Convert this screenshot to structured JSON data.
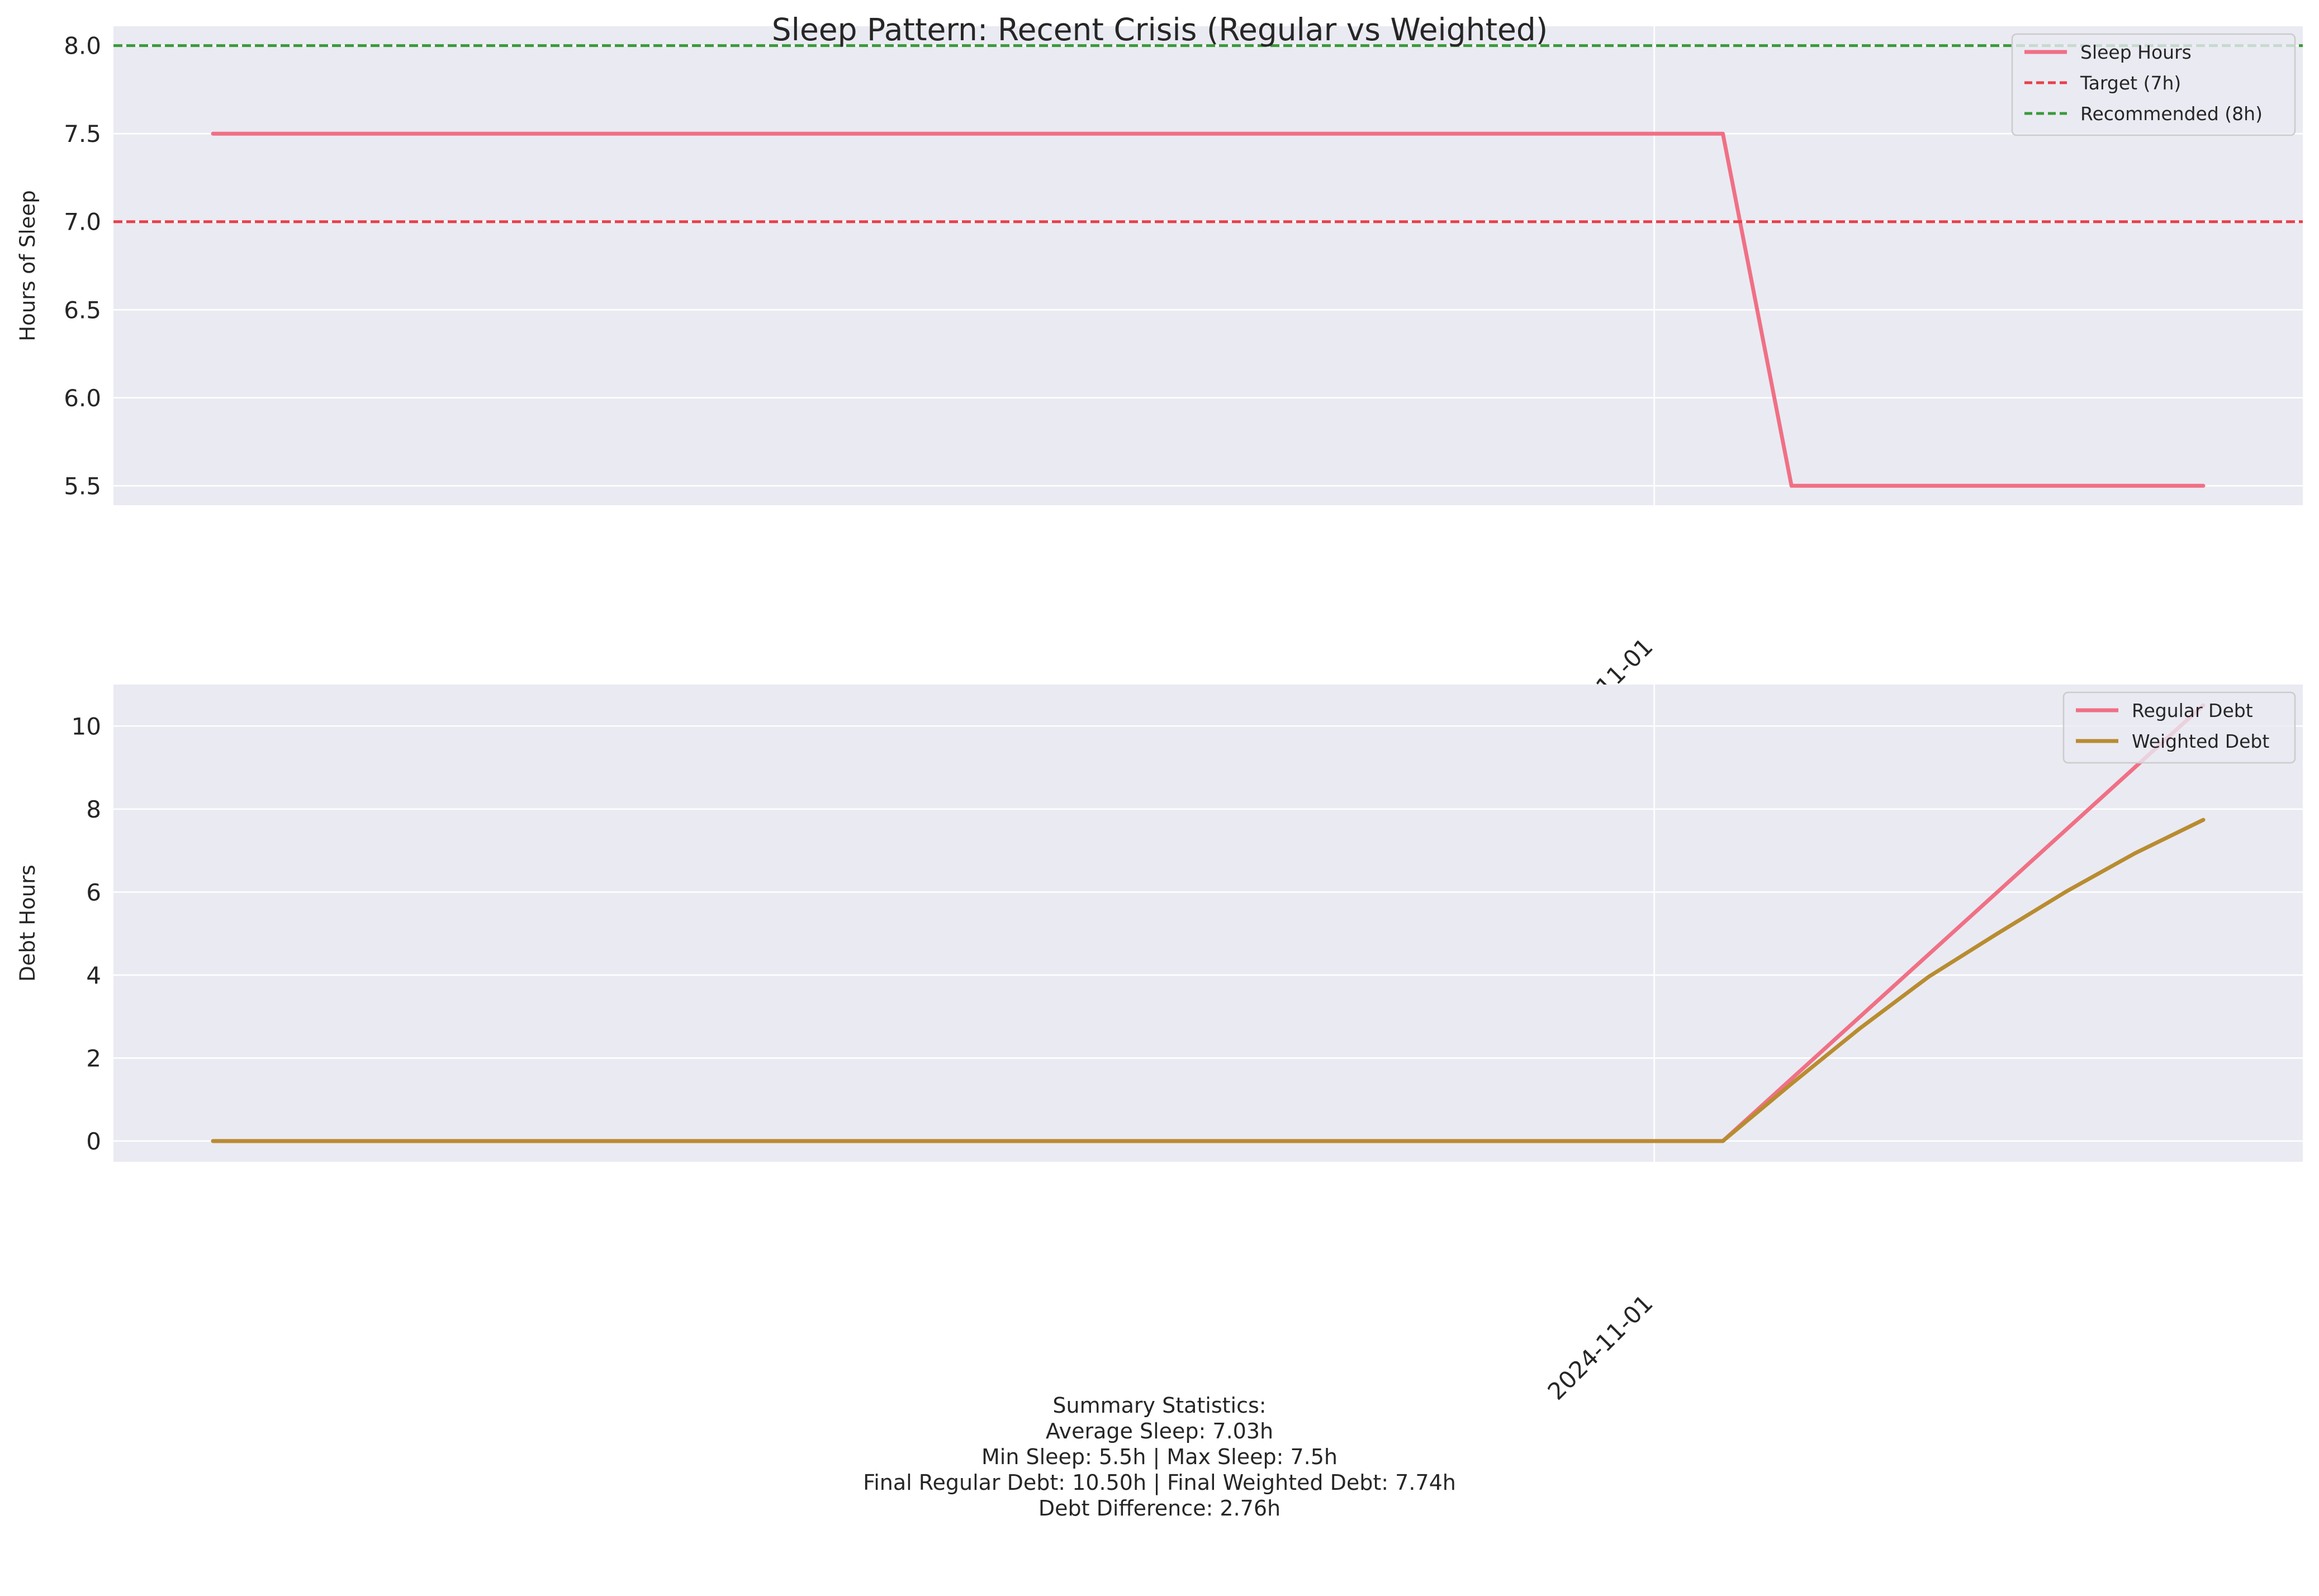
{
  "chart_data": [
    {
      "type": "line",
      "title": "Sleep Pattern: Recent Crisis (Regular vs Weighted)",
      "xlabel": "",
      "ylabel": "Hours of Sleep",
      "x_tick_labels": [
        "2024-11-01"
      ],
      "y_ticks": [
        "5.5",
        "6.0",
        "6.5",
        "7.0",
        "7.5",
        "8.0"
      ],
      "ylim": [
        5.39,
        8.11
      ],
      "x": [
        "2024-10-11",
        "2024-10-12",
        "2024-10-13",
        "2024-10-14",
        "2024-10-15",
        "2024-10-16",
        "2024-10-17",
        "2024-10-18",
        "2024-10-19",
        "2024-10-20",
        "2024-10-21",
        "2024-10-22",
        "2024-10-23",
        "2024-10-24",
        "2024-10-25",
        "2024-10-26",
        "2024-10-27",
        "2024-10-28",
        "2024-10-29",
        "2024-10-30",
        "2024-10-31",
        "2024-11-01",
        "2024-11-02",
        "2024-11-03",
        "2024-11-04",
        "2024-11-05",
        "2024-11-06",
        "2024-11-07",
        "2024-11-08",
        "2024-11-09"
      ],
      "series": [
        {
          "name": "Sleep Hours",
          "color": "#f07085",
          "style": "solid",
          "values": [
            7.5,
            7.5,
            7.5,
            7.5,
            7.5,
            7.5,
            7.5,
            7.5,
            7.5,
            7.5,
            7.5,
            7.5,
            7.5,
            7.5,
            7.5,
            7.5,
            7.5,
            7.5,
            7.5,
            7.5,
            7.5,
            7.5,
            7.5,
            5.5,
            5.5,
            5.5,
            5.5,
            5.5,
            5.5,
            5.5
          ]
        }
      ],
      "reference_lines": [
        {
          "name": "Target (7h)",
          "value": 7.0,
          "color": "#e8404a",
          "style": "dashed"
        },
        {
          "name": "Recommended (8h)",
          "value": 8.0,
          "color": "#3a9a3a",
          "style": "dashed"
        }
      ],
      "grid": true,
      "legend": "top-right"
    },
    {
      "type": "line",
      "xlabel": "",
      "ylabel": "Debt Hours",
      "x_tick_labels": [
        "2024-11-01"
      ],
      "y_ticks": [
        "0",
        "2",
        "4",
        "6",
        "8",
        "10"
      ],
      "ylim": [
        -0.5,
        11.0
      ],
      "x": [
        "2024-10-11",
        "2024-10-12",
        "2024-10-13",
        "2024-10-14",
        "2024-10-15",
        "2024-10-16",
        "2024-10-17",
        "2024-10-18",
        "2024-10-19",
        "2024-10-20",
        "2024-10-21",
        "2024-10-22",
        "2024-10-23",
        "2024-10-24",
        "2024-10-25",
        "2024-10-26",
        "2024-10-27",
        "2024-10-28",
        "2024-10-29",
        "2024-10-30",
        "2024-10-31",
        "2024-11-01",
        "2024-11-02",
        "2024-11-03",
        "2024-11-04",
        "2024-11-05",
        "2024-11-06",
        "2024-11-07",
        "2024-11-08",
        "2024-11-09"
      ],
      "series": [
        {
          "name": "Regular Debt",
          "color": "#f07085",
          "style": "solid",
          "values": [
            0,
            0,
            0,
            0,
            0,
            0,
            0,
            0,
            0,
            0,
            0,
            0,
            0,
            0,
            0,
            0,
            0,
            0,
            0,
            0,
            0,
            0,
            0,
            1.5,
            3.0,
            4.5,
            6.0,
            7.5,
            9.0,
            10.5
          ]
        },
        {
          "name": "Weighted Debt",
          "color": "#b88c30",
          "style": "solid",
          "values": [
            0,
            0,
            0,
            0,
            0,
            0,
            0,
            0,
            0,
            0,
            0,
            0,
            0,
            0,
            0,
            0,
            0,
            0,
            0,
            0,
            0,
            0,
            0,
            1.38,
            2.72,
            3.96,
            5.0,
            6.01,
            6.93,
            7.74
          ]
        }
      ],
      "grid": true,
      "legend": "top-right"
    }
  ],
  "summary": {
    "title": "Summary Statistics:",
    "lines": [
      "Average Sleep: 7.03h",
      "Min Sleep: 5.5h | Max Sleep: 7.5h",
      "Final Regular Debt: 10.50h | Final Weighted Debt: 7.74h",
      "Debt Difference: 2.76h"
    ]
  }
}
